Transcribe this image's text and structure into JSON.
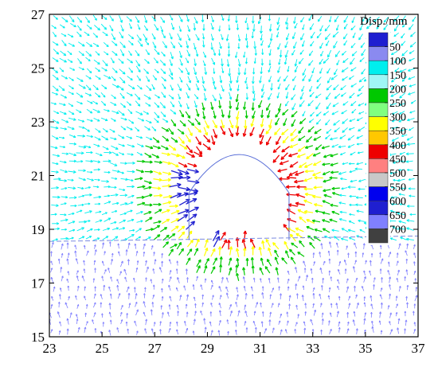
{
  "chart_data": {
    "type": "vector-field",
    "title": "",
    "xlabel": "",
    "ylabel": "",
    "xlim": [
      23,
      37
    ],
    "ylim": [
      15,
      27
    ],
    "xticks": [
      "23",
      "25",
      "27",
      "29",
      "31",
      "33",
      "35",
      "37"
    ],
    "yticks": [
      "15",
      "17",
      "19",
      "21",
      "23",
      "25",
      "27"
    ],
    "legend": {
      "title": "Disp./mm",
      "position": "top-right",
      "labels": [
        "50",
        "100",
        "150",
        "200",
        "250",
        "300",
        "350",
        "400",
        "450",
        "500",
        "550",
        "600",
        "650",
        "700"
      ],
      "colors": [
        "#1f1fd0",
        "#8a8af0",
        "#00eeee",
        "#9ff6f6",
        "#00c800",
        "#80ff80",
        "#ffff00",
        "#ffc800",
        "#ee0000",
        "#ff8080",
        "#c8c8c8",
        "#0000ee",
        "#1f1fd0",
        "#8080ff",
        "#404040"
      ]
    },
    "tunnel": {
      "center_x": 30.2,
      "floor_y": 18.6,
      "crown_y": 22.5,
      "half_width": 1.9
    },
    "field_zones": [
      {
        "name": "upper-far",
        "color": "#00eeee",
        "magnitude_range": [
          100,
          150
        ]
      },
      {
        "name": "lower-far",
        "color": "#8080ff",
        "magnitude_range": [
          50,
          100
        ]
      },
      {
        "name": "ring-outer",
        "color": "#00c800",
        "magnitude_range": [
          200,
          250
        ]
      },
      {
        "name": "ring-middle",
        "color": "#ffff00",
        "magnitude_range": [
          300,
          350
        ]
      },
      {
        "name": "ring-inner",
        "color": "#ee0000",
        "magnitude_range": [
          400,
          450
        ]
      },
      {
        "name": "sidewall-left",
        "color": "#1f1fd0",
        "magnitude_range": [
          600,
          700
        ]
      }
    ]
  }
}
